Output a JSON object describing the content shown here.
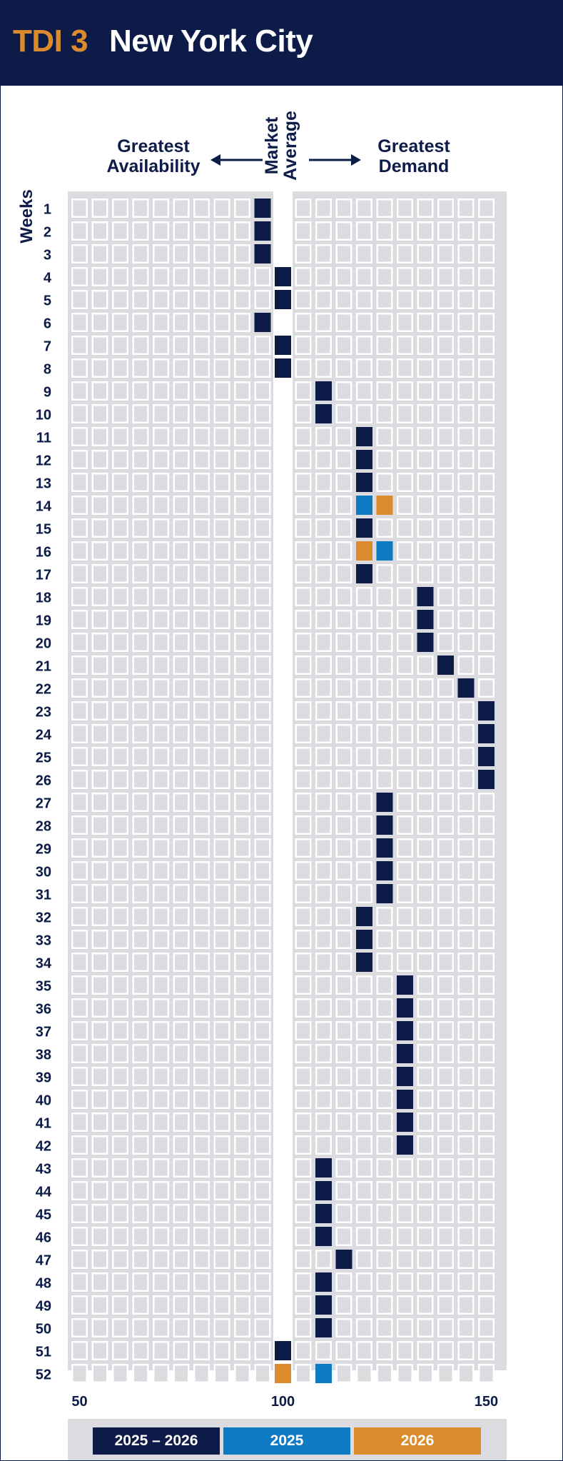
{
  "header": {
    "tdi_label": "TDI 3",
    "city": "New York City"
  },
  "direction": {
    "left_label_line1": "Greatest",
    "left_label_line2": "Availability",
    "right_label_line1": "Greatest",
    "right_label_line2": "Demand",
    "center_label_line1": "Market",
    "center_label_line2": "Average"
  },
  "colors": {
    "navy": "#0d1b48",
    "orange": "#db8b2c",
    "blue": "#0f7ac4",
    "cell": "#dcdce0",
    "panel": "#dcdce0"
  },
  "chart_data": {
    "type": "heatmap",
    "ylabel": "Weeks",
    "x_ticks": [
      50,
      100,
      150
    ],
    "xlim": [
      50,
      150
    ],
    "weeks": [
      1,
      2,
      3,
      4,
      5,
      6,
      7,
      8,
      9,
      10,
      11,
      12,
      13,
      14,
      15,
      16,
      17,
      18,
      19,
      20,
      21,
      22,
      23,
      24,
      25,
      26,
      27,
      28,
      29,
      30,
      31,
      32,
      33,
      34,
      35,
      36,
      37,
      38,
      39,
      40,
      41,
      42,
      43,
      44,
      45,
      46,
      47,
      48,
      49,
      50,
      51,
      52
    ],
    "series": [
      {
        "name": "2025 – 2026",
        "color": "#0d1b48",
        "values": [
          95,
          95,
          95,
          100,
          100,
          95,
          100,
          100,
          110,
          110,
          120,
          120,
          120,
          null,
          120,
          null,
          120,
          135,
          135,
          135,
          140,
          145,
          150,
          150,
          150,
          150,
          125,
          125,
          125,
          125,
          125,
          120,
          120,
          120,
          130,
          130,
          130,
          130,
          130,
          130,
          130,
          130,
          110,
          110,
          110,
          110,
          115,
          110,
          110,
          110,
          100,
          null
        ]
      },
      {
        "name": "2025",
        "color": "#0f7ac4",
        "points": [
          [
            14,
            120
          ],
          [
            16,
            125
          ],
          [
            52,
            110
          ]
        ]
      },
      {
        "name": "2026",
        "color": "#db8b2c",
        "points": [
          [
            14,
            125
          ],
          [
            16,
            120
          ],
          [
            52,
            100
          ]
        ]
      }
    ],
    "legend": [
      "2025 – 2026",
      "2025",
      "2026"
    ],
    "legend_placement": "bottom"
  }
}
